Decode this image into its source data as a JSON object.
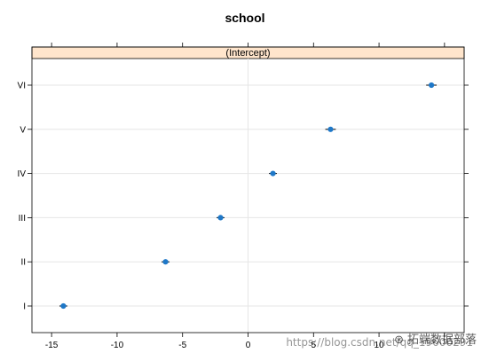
{
  "chart_data": {
    "type": "scatter",
    "title": "school",
    "strip_label": "(Intercept)",
    "xlabel": "",
    "ylabel": "",
    "categories": [
      "I",
      "II",
      "III",
      "IV",
      "V",
      "VI"
    ],
    "estimates": [
      -14.1,
      -6.3,
      -2.1,
      1.9,
      6.3,
      14.0
    ],
    "lower": [
      -14.4,
      -6.6,
      -2.4,
      1.6,
      5.9,
      13.6
    ],
    "upper": [
      -13.8,
      -6.0,
      -1.8,
      2.2,
      6.7,
      14.4
    ],
    "xlim": [
      -16.5,
      16.5
    ],
    "xticks": [
      -15,
      -10,
      -5,
      0,
      5,
      10,
      15
    ],
    "xtick_labels": [
      "-15",
      "-10",
      "-5",
      "0",
      "5",
      "10",
      ""
    ],
    "grid": true,
    "point_color": "#1f78c8",
    "strip_color": "#ffe5cc"
  },
  "watermark": {
    "url_text": "https://blog.csdn.net/qq_19600291",
    "brand_text": "拓端数据部落"
  }
}
